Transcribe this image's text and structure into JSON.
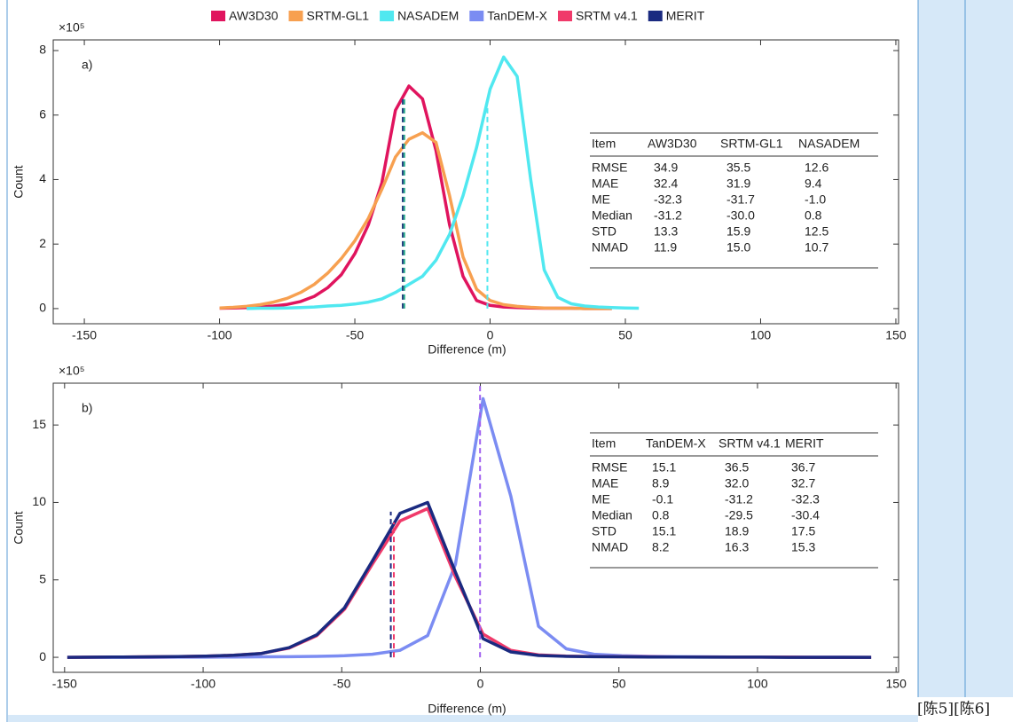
{
  "chart_data": [
    {
      "type": "line",
      "panel_label": "a)",
      "y_multiplier": "×10⁵",
      "x_label": "Difference (m)",
      "y_label": "Count",
      "x": [
        -100,
        -95,
        -90,
        -85,
        -80,
        -75,
        -70,
        -65,
        -60,
        -55,
        -50,
        -45,
        -40,
        -35,
        -30,
        -25,
        -20,
        -15,
        -10,
        -5,
        0,
        5,
        10,
        15,
        20,
        25,
        30,
        35,
        40,
        45,
        50,
        55
      ],
      "series": [
        {
          "name": "AW3D30",
          "color": "#e0145e",
          "values": [
            0.01,
            0.02,
            0.03,
            0.05,
            0.08,
            0.13,
            0.22,
            0.38,
            0.65,
            1.05,
            1.7,
            2.6,
            3.9,
            6.15,
            6.9,
            6.5,
            4.9,
            2.6,
            1.0,
            0.25,
            0.1,
            0.05,
            0.03,
            0.02,
            0.01,
            0.01,
            0.01,
            0,
            0,
            0,
            null,
            null
          ]
        },
        {
          "name": "SRTM-GL1",
          "color": "#f7a050",
          "values": [
            0.02,
            0.04,
            0.07,
            0.12,
            0.2,
            0.32,
            0.5,
            0.75,
            1.1,
            1.55,
            2.1,
            2.8,
            3.7,
            4.7,
            5.25,
            5.45,
            5.15,
            3.5,
            1.6,
            0.6,
            0.25,
            0.12,
            0.07,
            0.04,
            0.02,
            0.01,
            0.01,
            0,
            0,
            0,
            null,
            null
          ]
        },
        {
          "name": "NASADEM",
          "color": "#50e8f0",
          "values": [
            null,
            null,
            0,
            0.01,
            0.01,
            0.02,
            0.03,
            0.05,
            0.08,
            0.1,
            0.14,
            0.2,
            0.3,
            0.5,
            0.75,
            1.0,
            1.5,
            2.3,
            3.5,
            5.0,
            6.8,
            7.8,
            7.2,
            4.0,
            1.2,
            0.35,
            0.15,
            0.08,
            0.05,
            0.03,
            0.02,
            0.01
          ]
        }
      ],
      "vlines": [
        {
          "x": -32.3,
          "y": 6.6,
          "color": "#2a3a80"
        },
        {
          "x": -31.7,
          "y": 6.5,
          "color": "#30b090"
        },
        {
          "x": -1.0,
          "y": 6.3,
          "color": "#50e8f0"
        }
      ],
      "xlim": [
        -161.5,
        151
      ],
      "ylim": [
        -0.47,
        8.33
      ],
      "xticks": [
        -150,
        -100,
        -50,
        0,
        50,
        100,
        150
      ],
      "yticks": [
        0,
        2,
        4,
        6,
        8
      ],
      "table": {
        "header": [
          "Item",
          "AW3D30",
          "SRTM-GL1",
          "NASADEM"
        ],
        "rows": [
          [
            "RMSE",
            "34.9",
            "35.5",
            "12.6"
          ],
          [
            "MAE",
            "32.4",
            "31.9",
            "9.4"
          ],
          [
            "ME",
            "-32.3",
            "-31.7",
            "-1.0"
          ],
          [
            "Median",
            "-31.2",
            "-30.0",
            "0.8"
          ],
          [
            "STD",
            "13.3",
            "15.9",
            "12.5"
          ],
          [
            "NMAD",
            "11.9",
            "15.0",
            "10.7"
          ]
        ]
      }
    },
    {
      "type": "line",
      "panel_label": "b)",
      "y_multiplier": "×10⁵",
      "x_label": "Difference (m)",
      "y_label": "Count",
      "x": [
        -149,
        -139,
        -129,
        -119,
        -109,
        -99,
        -89,
        -79,
        -69,
        -59,
        -49,
        -39,
        -29,
        -19,
        -9,
        1,
        11,
        21,
        31,
        41,
        51,
        61,
        71,
        81,
        91,
        101,
        111,
        121,
        131,
        141
      ],
      "series": [
        {
          "name": "TanDEM-X",
          "color": "#7b8cf2",
          "values": [
            0,
            0,
            0,
            0,
            0.01,
            0.01,
            0.02,
            0.03,
            0.04,
            0.06,
            0.1,
            0.2,
            0.45,
            1.4,
            6.0,
            16.7,
            10.4,
            2.0,
            0.55,
            0.2,
            0.1,
            0.06,
            0.04,
            0.03,
            0.02,
            0.02,
            0.01,
            0.01,
            0.01,
            0
          ]
        },
        {
          "name": "SRTM v4.1",
          "color": "#f03a6a",
          "values": [
            0,
            0.01,
            0.02,
            0.03,
            0.05,
            0.08,
            0.13,
            0.25,
            0.6,
            1.4,
            3.1,
            6.0,
            8.8,
            9.6,
            5.2,
            1.5,
            0.45,
            0.15,
            0.08,
            0.05,
            0.04,
            0.03,
            0.02,
            0.02,
            0.01,
            0.01,
            0.01,
            0,
            0,
            0
          ]
        },
        {
          "name": "MERIT",
          "color": "#1a2a80",
          "values": [
            0,
            0.01,
            0.02,
            0.03,
            0.05,
            0.08,
            0.13,
            0.25,
            0.62,
            1.45,
            3.2,
            6.2,
            9.3,
            10.0,
            5.5,
            1.2,
            0.35,
            0.12,
            0.06,
            0.04,
            0.03,
            0.02,
            0.02,
            0.01,
            0.01,
            0.01,
            0,
            0,
            0,
            0
          ]
        }
      ],
      "vlines": [
        {
          "x": -0.1,
          "y": 17.7,
          "color": "#a060f0"
        },
        {
          "x": -31.2,
          "y": 8.7,
          "color": "#f03a6a"
        },
        {
          "x": -32.3,
          "y": 9.4,
          "color": "#1a2a80"
        }
      ],
      "xlim": [
        -154.1,
        150.9
      ],
      "ylim": [
        -0.97,
        17.7
      ],
      "xticks": [
        -150,
        -100,
        -50,
        0,
        50,
        100,
        150
      ],
      "yticks": [
        0,
        5,
        10,
        15
      ],
      "table": {
        "header": [
          "Item",
          "TanDEM-X",
          "SRTM v4.1",
          "MERIT"
        ],
        "rows": [
          [
            "RMSE",
            "15.1",
            "36.5",
            "36.7"
          ],
          [
            "MAE",
            "8.9",
            "32.0",
            "32.7"
          ],
          [
            "ME",
            "-0.1",
            "-31.2",
            "-32.3"
          ],
          [
            "Median",
            "0.8",
            "-29.5",
            "-30.4"
          ],
          [
            "STD",
            "15.1",
            "18.9",
            "17.5"
          ],
          [
            "NMAD",
            "8.2",
            "16.3",
            "15.3"
          ]
        ]
      }
    }
  ],
  "sidebar_text": "[陈5][陈6]"
}
